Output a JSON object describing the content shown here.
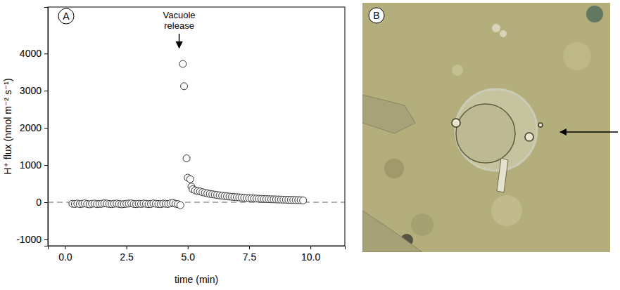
{
  "chart_data": {
    "type": "scatter",
    "label": "A",
    "x_label": "time (min)",
    "y_label": "H⁺ flux (nmol m⁻² s⁻¹)",
    "marker": "open-circle",
    "color": "#333333",
    "x": [
      0.3,
      0.4,
      0.5,
      0.6,
      0.7,
      0.8,
      0.9,
      1.0,
      1.1,
      1.2,
      1.3,
      1.4,
      1.5,
      1.6,
      1.7,
      1.8,
      1.9,
      2.0,
      2.1,
      2.2,
      2.3,
      2.4,
      2.5,
      2.6,
      2.7,
      2.8,
      2.9,
      3.0,
      3.1,
      3.2,
      3.3,
      3.4,
      3.5,
      3.6,
      3.7,
      3.8,
      3.9,
      4.0,
      4.1,
      4.2,
      4.3,
      4.4,
      4.5,
      4.6,
      4.7,
      4.8,
      4.85,
      4.95,
      5.0,
      5.1,
      5.15,
      5.2,
      5.3,
      5.4,
      5.5,
      5.6,
      5.7,
      5.8,
      5.9,
      6.0,
      6.1,
      6.2,
      6.3,
      6.4,
      6.5,
      6.6,
      6.7,
      6.8,
      6.9,
      7.0,
      7.1,
      7.2,
      7.3,
      7.4,
      7.5,
      7.6,
      7.7,
      7.8,
      7.9,
      8.0,
      8.1,
      8.2,
      8.3,
      8.4,
      8.5,
      8.6,
      8.7,
      8.8,
      8.9,
      9.0,
      9.1,
      9.2,
      9.3,
      9.4,
      9.5,
      9.6,
      9.7
    ],
    "values": [
      -40,
      -45,
      -35,
      -50,
      -40,
      -30,
      -45,
      -55,
      -40,
      -35,
      -50,
      -45,
      -40,
      -30,
      -35,
      -45,
      -50,
      -40,
      -35,
      -45,
      -55,
      -50,
      -40,
      -35,
      -30,
      -45,
      -50,
      -40,
      -45,
      -35,
      -40,
      -50,
      -45,
      -30,
      -40,
      -45,
      -50,
      -35,
      -40,
      -45,
      -30,
      -20,
      -40,
      -50,
      -80,
      3720,
      3120,
      1180,
      660,
      620,
      420,
      350,
      320,
      300,
      290,
      270,
      255,
      240,
      225,
      215,
      205,
      195,
      185,
      175,
      168,
      160,
      153,
      146,
      140,
      135,
      130,
      125,
      120,
      115,
      110,
      106,
      102,
      98,
      95,
      92,
      89,
      86,
      83,
      80,
      78,
      76,
      74,
      72,
      70,
      68,
      66,
      64,
      62,
      60,
      58,
      56,
      50
    ],
    "xlim": [
      -0.7,
      11.4
    ],
    "ylim": [
      -1170,
      5250
    ],
    "xticks": [
      {
        "value": 0,
        "label": "0.0"
      },
      {
        "value": 2.5,
        "label": "2.5"
      },
      {
        "value": 5,
        "label": "5.0"
      },
      {
        "value": 7.5,
        "label": "7.5"
      },
      {
        "value": 10,
        "label": "10.0"
      }
    ],
    "yticks": [
      -1000,
      0,
      1000,
      2000,
      3000,
      4000
    ],
    "hlines": [
      {
        "y": 0,
        "line_style": "dashed"
      }
    ],
    "annotations": [
      {
        "text": "Vacuole release",
        "x": 4.65,
        "y": 4150
      }
    ]
  },
  "photo": {
    "label": "B"
  }
}
